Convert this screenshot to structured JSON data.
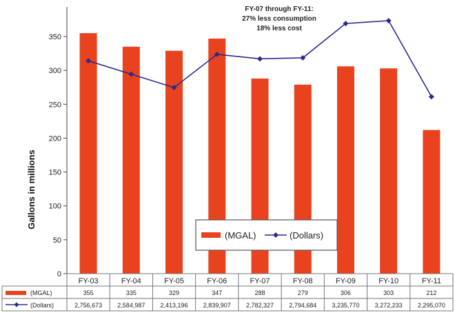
{
  "chart_data": {
    "type": "bar",
    "categories": [
      "FY-03",
      "FY-04",
      "FY-05",
      "FY-06",
      "FY-07",
      "FY-08",
      "FY-09",
      "FY-10",
      "FY-11"
    ],
    "series": [
      {
        "name": "(MGAL)",
        "type": "bar",
        "color": "#e8431e",
        "values": [
          355,
          335,
          329,
          347,
          288,
          279,
          306,
          303,
          212
        ],
        "labels": [
          "355",
          "335",
          "329",
          "347",
          "288",
          "279",
          "306",
          "303",
          "212"
        ]
      },
      {
        "name": "(Dollars)",
        "type": "line",
        "color": "#2b2b8f",
        "values": [
          2756673,
          2584987,
          2413196,
          2839907,
          2782327,
          2794684,
          3235770,
          3272233,
          2295070
        ],
        "labels": [
          "2,756,673",
          "2,584,987",
          "2,413,196",
          "2,839,907",
          "2,782,327",
          "2,794,684",
          "3,235,770",
          "3,272,233",
          "2,295,070"
        ]
      }
    ],
    "ylabel": "Gallons in millions",
    "ylim": [
      0,
      350
    ],
    "yticks": [
      "0",
      "50",
      "100",
      "150",
      "200",
      "250",
      "300",
      "350"
    ],
    "annotation": [
      "FY-07 through FY-11:",
      "27% less consumption",
      "18% less cost"
    ],
    "legend": {
      "position": "bottom-center",
      "entries": [
        "(MGAL)",
        "(Dollars)"
      ]
    },
    "grid": false
  }
}
